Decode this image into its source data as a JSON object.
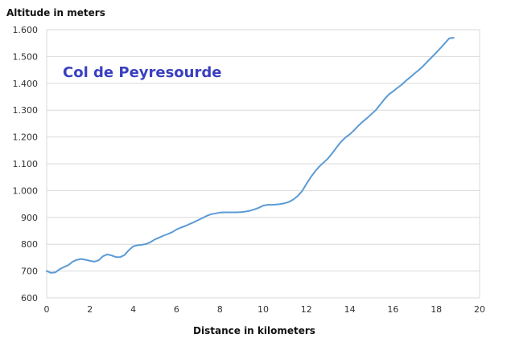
{
  "chart_data": {
    "type": "line",
    "title": "Col de Peyresourde",
    "xlabel": "Distance in kilometers",
    "ylabel": "Altitude in meters",
    "xlim": [
      0,
      20
    ],
    "ylim": [
      600,
      1600
    ],
    "grid": true,
    "x_ticks": [
      "0",
      "2",
      "4",
      "6",
      "8",
      "10",
      "12",
      "14",
      "16",
      "18",
      "20"
    ],
    "y_ticks": [
      "600",
      "700",
      "800",
      "900",
      "1.000",
      "1.100",
      "1.200",
      "1.300",
      "1.400",
      "1.500",
      "1.600"
    ],
    "colors": {
      "line": "#5b9bd5",
      "title": "#3a3fbf",
      "grid": "#d9d9d9"
    },
    "series": [
      {
        "x": [
          0,
          0.2,
          0.4,
          0.6,
          0.8,
          1.0,
          1.2,
          1.4,
          1.6,
          1.8,
          2.0,
          2.2,
          2.4,
          2.6,
          2.8,
          3.0,
          3.2,
          3.4,
          3.6,
          3.8,
          4.0,
          4.2,
          4.4,
          4.6,
          4.8,
          5.0,
          5.2,
          5.4,
          5.6,
          5.8,
          6.0,
          6.2,
          6.4,
          6.6,
          6.8,
          7.0,
          7.2,
          7.4,
          7.6,
          7.8,
          8.0,
          8.2,
          8.4,
          8.6,
          8.8,
          9.0,
          9.2,
          9.4,
          9.6,
          9.8,
          10.0,
          10.2,
          10.4,
          10.6,
          10.8,
          11.0,
          11.2,
          11.4,
          11.6,
          11.8,
          12.0,
          12.2,
          12.4,
          12.6,
          12.8,
          13.0,
          13.2,
          13.4,
          13.6,
          13.8,
          14.0,
          14.2,
          14.4,
          14.6,
          14.8,
          15.0,
          15.2,
          15.4,
          15.6,
          15.8,
          16.0,
          16.2,
          16.4,
          16.6,
          16.8,
          17.0,
          17.2,
          17.4,
          17.6,
          17.8,
          18.0,
          18.2,
          18.4,
          18.6,
          18.8
        ],
        "values": [
          700,
          693,
          695,
          707,
          715,
          722,
          735,
          742,
          745,
          742,
          738,
          735,
          740,
          755,
          762,
          758,
          752,
          752,
          760,
          778,
          792,
          796,
          798,
          801,
          808,
          818,
          825,
          832,
          838,
          845,
          855,
          862,
          868,
          875,
          882,
          890,
          898,
          906,
          912,
          915,
          918,
          919,
          919,
          919,
          919,
          920,
          922,
          925,
          930,
          936,
          944,
          947,
          947,
          948,
          950,
          953,
          958,
          967,
          980,
          998,
          1025,
          1050,
          1072,
          1090,
          1105,
          1120,
          1140,
          1162,
          1182,
          1198,
          1210,
          1225,
          1242,
          1257,
          1270,
          1285,
          1300,
          1320,
          1340,
          1358,
          1370,
          1383,
          1395,
          1410,
          1423,
          1437,
          1450,
          1465,
          1482,
          1498,
          1515,
          1532,
          1550,
          1568,
          1570
        ]
      }
    ]
  }
}
